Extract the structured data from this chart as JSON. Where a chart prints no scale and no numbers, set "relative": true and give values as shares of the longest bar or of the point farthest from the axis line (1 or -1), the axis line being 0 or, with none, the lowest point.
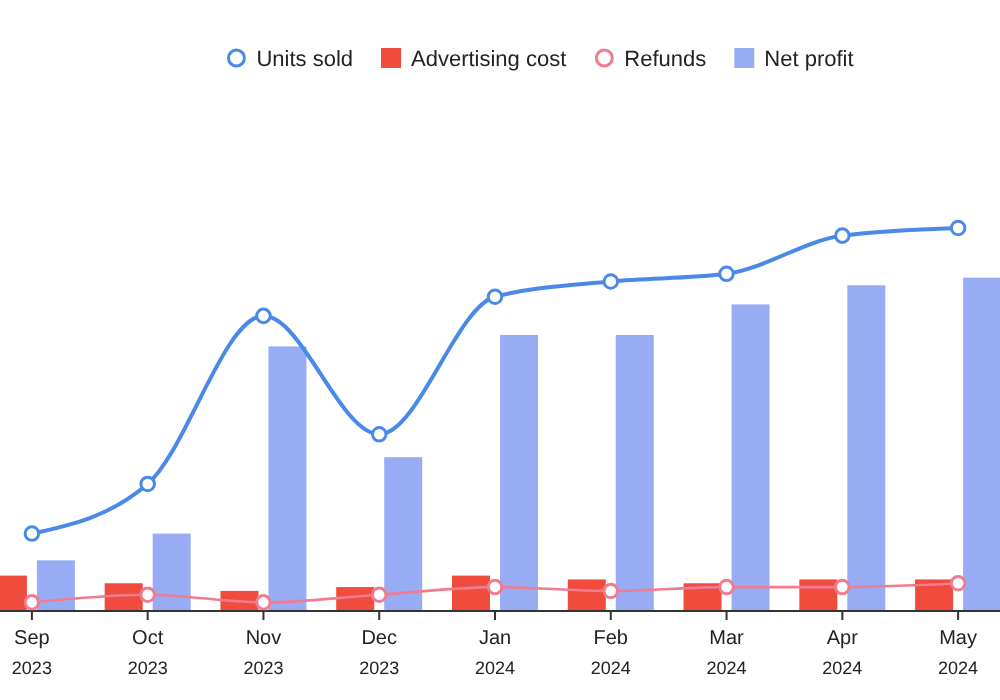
{
  "chart_data": {
    "type": "bar",
    "relative": true,
    "legend": "top",
    "categories": [
      "Sep\n2023",
      "Oct\n2023",
      "Nov\n2023",
      "Dec\n2023",
      "Jan\n2024",
      "Feb\n2024",
      "Mar\n2024",
      "Apr\n2024",
      "May\n2024"
    ],
    "series": [
      {
        "name": "Units sold",
        "type": "line",
        "color": "#4a89e8",
        "marker": "circle",
        "values": [
          0.2,
          0.33,
          0.77,
          0.46,
          0.82,
          0.86,
          0.88,
          0.98,
          1
        ]
      },
      {
        "name": "Advertising cost",
        "color": "#f04b3c",
        "values": [
          0.09,
          0.07,
          0.05,
          0.06,
          0.09,
          0.08,
          0.07,
          0.08,
          0.08
        ]
      },
      {
        "name": "Refunds",
        "type": "line",
        "color": "#f07c90",
        "marker": "circle",
        "values": [
          0.02,
          0.04,
          0.02,
          0.04,
          0.06,
          0.05,
          0.06,
          0.06,
          0.07
        ]
      },
      {
        "name": "Net profit",
        "color": "#98acf5",
        "values": [
          0.13,
          0.2,
          0.69,
          0.4,
          0.72,
          0.72,
          0.8,
          0.85,
          0.87
        ]
      }
    ]
  }
}
